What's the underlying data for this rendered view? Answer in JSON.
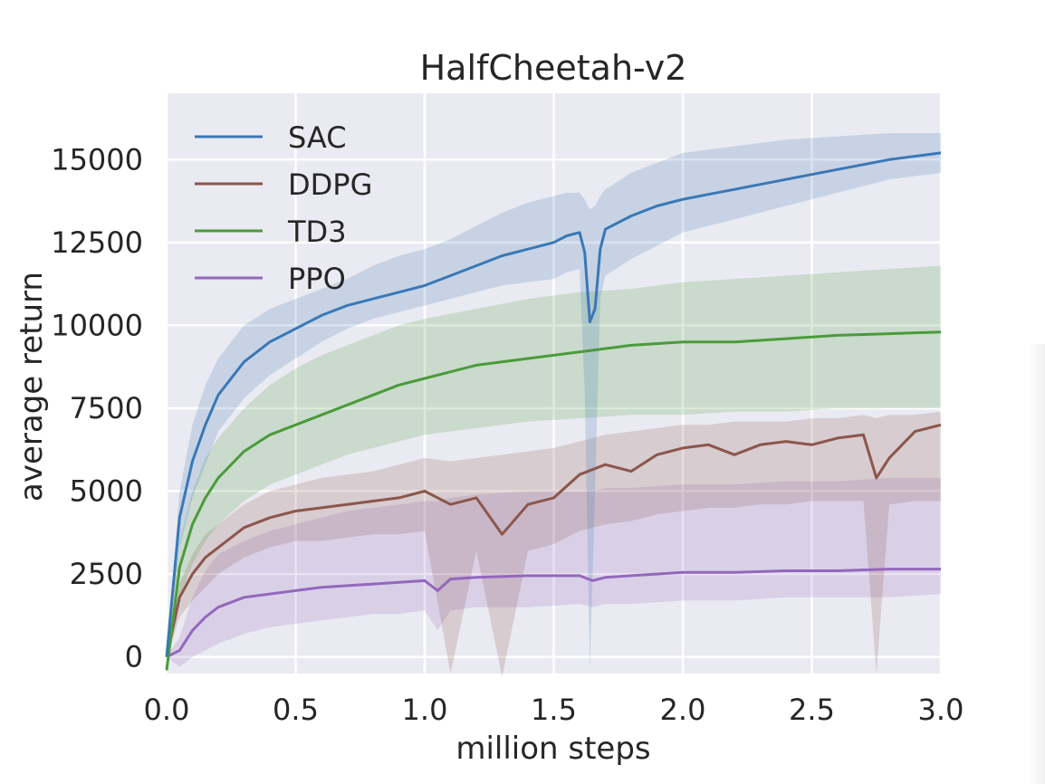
{
  "colors": {
    "background": "#eaeaf2",
    "grid": "#ffffff",
    "SAC": "#3a78b5",
    "DDPG": "#8c564b",
    "TD3": "#4a9b3a",
    "PPO": "#9467bd"
  },
  "chart_data": {
    "type": "line",
    "title": "HalfCheetah-v2",
    "xlabel": "million steps",
    "ylabel": "average return",
    "xlim": [
      0,
      3.0
    ],
    "ylim": [
      -500,
      17000
    ],
    "xticks": [
      0.0,
      0.5,
      1.0,
      1.5,
      2.0,
      2.5,
      3.0
    ],
    "xtick_labels": [
      "0.0",
      "0.5",
      "1.0",
      "1.5",
      "2.0",
      "2.5",
      "3.0"
    ],
    "yticks": [
      0,
      2500,
      5000,
      7500,
      10000,
      12500,
      15000
    ],
    "ytick_labels": [
      "0",
      "2500",
      "5000",
      "7500",
      "10000",
      "12500",
      "15000"
    ],
    "grid": true,
    "legend_position": "top-left",
    "series": [
      {
        "name": "SAC",
        "x": [
          0.0,
          0.05,
          0.1,
          0.15,
          0.2,
          0.3,
          0.4,
          0.5,
          0.6,
          0.7,
          0.8,
          0.9,
          1.0,
          1.1,
          1.2,
          1.3,
          1.4,
          1.5,
          1.55,
          1.6,
          1.62,
          1.64,
          1.66,
          1.68,
          1.7,
          1.8,
          1.9,
          2.0,
          2.2,
          2.4,
          2.6,
          2.8,
          3.0
        ],
        "y": [
          0,
          4200,
          5900,
          7000,
          7900,
          8900,
          9500,
          9900,
          10300,
          10600,
          10800,
          11000,
          11200,
          11500,
          11800,
          12100,
          12300,
          12500,
          12700,
          12800,
          12200,
          10100,
          10500,
          12300,
          12900,
          13300,
          13600,
          13800,
          14100,
          14400,
          14700,
          15000,
          15200
        ],
        "band": {
          "upper": [
            0,
            5000,
            7000,
            8200,
            9000,
            10000,
            10500,
            10800,
            11100,
            11400,
            11800,
            12100,
            12300,
            12600,
            13000,
            13400,
            13700,
            13900,
            14000,
            14000,
            13800,
            13500,
            13600,
            13900,
            14100,
            14600,
            14900,
            15200,
            15400,
            15600,
            15700,
            15800,
            15800
          ],
          "lower": [
            0,
            3300,
            4800,
            5800,
            6800,
            7800,
            8500,
            9000,
            9500,
            9900,
            10200,
            10400,
            10600,
            10800,
            11000,
            11200,
            11300,
            11400,
            11600,
            11700,
            8000,
            -400,
            5000,
            10800,
            11500,
            12000,
            12400,
            12800,
            13200,
            13600,
            14000,
            14400,
            14600
          ]
        }
      },
      {
        "name": "DDPG",
        "x": [
          0.0,
          0.05,
          0.1,
          0.15,
          0.2,
          0.3,
          0.4,
          0.5,
          0.6,
          0.7,
          0.8,
          0.9,
          1.0,
          1.1,
          1.2,
          1.3,
          1.4,
          1.5,
          1.6,
          1.7,
          1.8,
          1.9,
          2.0,
          2.1,
          2.2,
          2.3,
          2.4,
          2.5,
          2.6,
          2.7,
          2.75,
          2.8,
          2.9,
          3.0
        ],
        "y": [
          0,
          1800,
          2500,
          3000,
          3300,
          3900,
          4200,
          4400,
          4500,
          4600,
          4700,
          4800,
          5000,
          4600,
          4800,
          3700,
          4600,
          4800,
          5500,
          5800,
          5600,
          6100,
          6300,
          6400,
          6100,
          6400,
          6500,
          6400,
          6600,
          6700,
          5400,
          6000,
          6800,
          7000
        ],
        "band": {
          "upper": [
            0,
            2200,
            3100,
            3700,
            4000,
            4600,
            5000,
            5200,
            5400,
            5500,
            5600,
            5800,
            6000,
            5900,
            6000,
            6100,
            6200,
            6300,
            6500,
            6700,
            6800,
            6900,
            7000,
            7000,
            7100,
            7100,
            7100,
            7200,
            7200,
            7300,
            7200,
            7300,
            7300,
            7400
          ],
          "lower": [
            0,
            1200,
            1700,
            2100,
            2500,
            3000,
            3300,
            3500,
            3500,
            3600,
            3700,
            3700,
            3800,
            -500,
            3200,
            -600,
            3200,
            3400,
            3800,
            4000,
            4100,
            4300,
            4400,
            4500,
            4500,
            4600,
            4600,
            4700,
            4700,
            4700,
            -500,
            4600,
            4700,
            4700
          ]
        }
      },
      {
        "name": "TD3",
        "x": [
          0.0,
          0.05,
          0.1,
          0.15,
          0.2,
          0.3,
          0.4,
          0.5,
          0.6,
          0.7,
          0.8,
          0.9,
          1.0,
          1.2,
          1.4,
          1.6,
          1.8,
          2.0,
          2.2,
          2.4,
          2.6,
          2.8,
          3.0
        ],
        "y": [
          -400,
          2700,
          4000,
          4800,
          5400,
          6200,
          6700,
          7000,
          7300,
          7600,
          7900,
          8200,
          8400,
          8800,
          9000,
          9200,
          9400,
          9500,
          9500,
          9600,
          9700,
          9750,
          9800
        ],
        "band": {
          "upper": [
            -200,
            3500,
            5000,
            6000,
            6600,
            7500,
            8200,
            8700,
            9100,
            9400,
            9700,
            10000,
            10200,
            10500,
            10800,
            11000,
            11100,
            11300,
            11400,
            11500,
            11600,
            11700,
            11800
          ],
          "lower": [
            -600,
            1800,
            2800,
            3500,
            4000,
            4700,
            5200,
            5500,
            5800,
            6100,
            6300,
            6500,
            6700,
            6900,
            7100,
            7200,
            7300,
            7300,
            7400,
            7400,
            7500,
            7500,
            7500
          ]
        }
      },
      {
        "name": "PPO",
        "x": [
          0.0,
          0.05,
          0.1,
          0.15,
          0.2,
          0.3,
          0.4,
          0.5,
          0.6,
          0.7,
          0.8,
          0.9,
          1.0,
          1.05,
          1.1,
          1.2,
          1.4,
          1.6,
          1.65,
          1.7,
          1.8,
          2.0,
          2.2,
          2.4,
          2.6,
          2.8,
          3.0
        ],
        "y": [
          0,
          200,
          800,
          1200,
          1500,
          1800,
          1900,
          2000,
          2100,
          2150,
          2200,
          2250,
          2300,
          2000,
          2350,
          2400,
          2450,
          2450,
          2300,
          2400,
          2450,
          2550,
          2550,
          2600,
          2600,
          2650,
          2650
        ],
        "band": {
          "upper": [
            0,
            600,
            1800,
            2600,
            3100,
            3500,
            3800,
            4000,
            4200,
            4400,
            4500,
            4600,
            4700,
            4700,
            4800,
            4900,
            5000,
            5000,
            5000,
            5100,
            5100,
            5200,
            5200,
            5300,
            5300,
            5400,
            5400
          ],
          "lower": [
            0,
            -300,
            0,
            200,
            400,
            700,
            900,
            1000,
            1100,
            1200,
            1300,
            1300,
            1400,
            800,
            1400,
            1500,
            1500,
            1600,
            1500,
            1600,
            1600,
            1700,
            1700,
            1800,
            1800,
            1800,
            1900
          ]
        }
      }
    ]
  }
}
